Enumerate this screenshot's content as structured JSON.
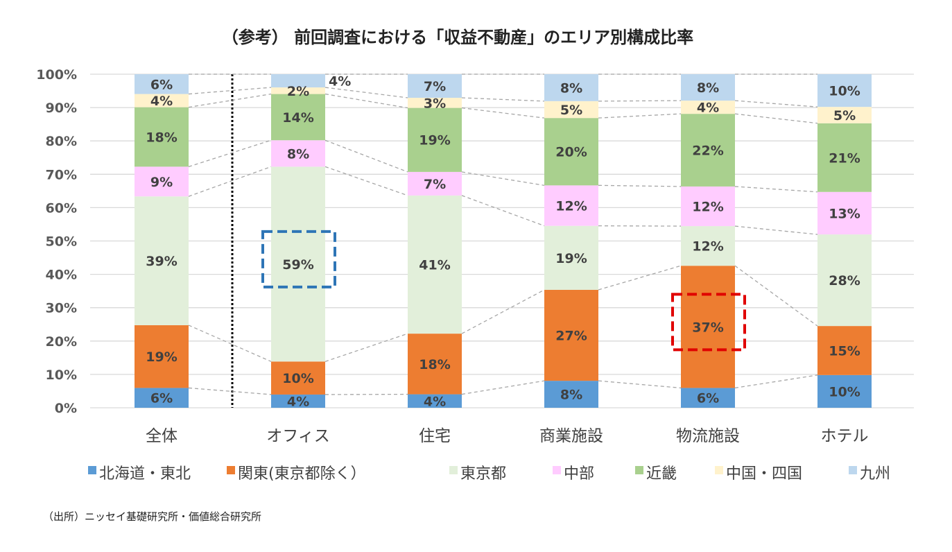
{
  "chart_data": {
    "type": "bar",
    "stacked": true,
    "title": "（参考） 前回調査における「収益不動産」のエリア別構成比率",
    "categories": [
      "全体",
      "オフィス",
      "住宅",
      "商業施設",
      "物流施設",
      "ホテル"
    ],
    "ylim": [
      0,
      100
    ],
    "yticks": [
      "0%",
      "10%",
      "20%",
      "30%",
      "40%",
      "50%",
      "60%",
      "70%",
      "80%",
      "90%",
      "100%"
    ],
    "grid": true,
    "legend_position": "bottom",
    "series": [
      {
        "name": "北海道・東北",
        "color": "#5b9bd5",
        "values": [
          6,
          4,
          4,
          8,
          6,
          10
        ],
        "labels": [
          "6%",
          "4%",
          "4%",
          "8%",
          "6%",
          "10%"
        ]
      },
      {
        "name": "関東(東京都除く）",
        "color": "#ed7d31",
        "values": [
          19,
          10,
          18,
          27,
          37,
          15
        ],
        "labels": [
          "19%",
          "10%",
          "18%",
          "27%",
          "37%",
          "15%"
        ]
      },
      {
        "name": "東京都",
        "color": "#e2efda",
        "values": [
          39,
          59,
          41,
          19,
          12,
          28
        ],
        "labels": [
          "39%",
          "59%",
          "41%",
          "19%",
          "12%",
          "28%"
        ]
      },
      {
        "name": "中部",
        "color": "#ffccff",
        "values": [
          9,
          8,
          7,
          12,
          12,
          13
        ],
        "labels": [
          "9%",
          "8%",
          "7%",
          "12%",
          "12%",
          "13%"
        ]
      },
      {
        "name": "近畿",
        "color": "#a9d08e",
        "values": [
          18,
          14,
          19,
          20,
          22,
          21
        ],
        "labels": [
          "18%",
          "14%",
          "19%",
          "20%",
          "22%",
          "21%"
        ]
      },
      {
        "name": "中国・四国",
        "color": "#fff2cc",
        "values": [
          4,
          2,
          3,
          5,
          4,
          5
        ],
        "labels": [
          "4%",
          "2%",
          "3%",
          "5%",
          "4%",
          "5%"
        ]
      },
      {
        "name": "九州",
        "color": "#bdd7ee",
        "values": [
          6,
          4,
          7,
          8,
          8,
          10
        ],
        "labels": [
          "6%",
          "4%",
          "7%",
          "8%",
          "8%",
          "10%"
        ]
      }
    ],
    "highlights": [
      {
        "category": "オフィス",
        "series": "東京都",
        "color": "#2e75b6"
      },
      {
        "category": "物流施設",
        "series": "関東(東京都除く）",
        "color": "#e00000"
      }
    ]
  },
  "source": "（出所）ニッセイ基礎研究所・価値総合研究所"
}
